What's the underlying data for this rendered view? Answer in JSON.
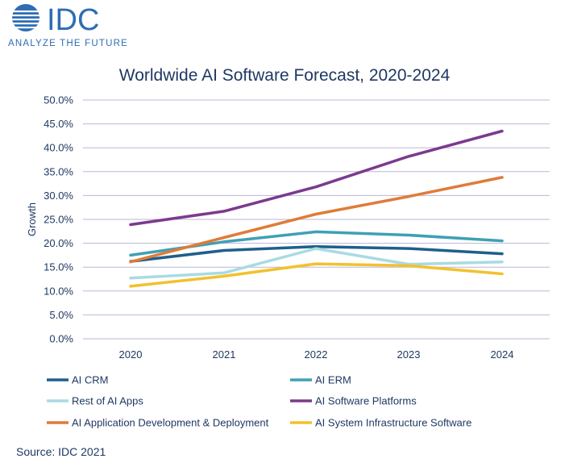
{
  "logo": {
    "brand": "IDC",
    "tagline": "ANALYZE THE FUTURE"
  },
  "source": "Source: IDC 2021",
  "chart_data": {
    "type": "line",
    "title": "Worldwide AI Software Forecast, 2020-2024",
    "xlabel": "",
    "ylabel": "Growth",
    "x": [
      "2020",
      "2021",
      "2022",
      "2023",
      "2024"
    ],
    "ylim": [
      0,
      50
    ],
    "yticks": [
      "0.0%",
      "5.0%",
      "10.0%",
      "15.0%",
      "20.0%",
      "25.0%",
      "30.0%",
      "35.0%",
      "40.0%",
      "45.0%",
      "50.0%"
    ],
    "grid": true,
    "legend_position": "bottom",
    "series": [
      {
        "name": "AI CRM",
        "color": "#1f5f8b",
        "values": [
          16.2,
          18.5,
          19.3,
          18.9,
          17.8
        ]
      },
      {
        "name": "AI ERM",
        "color": "#3fa0b5",
        "values": [
          17.5,
          20.3,
          22.4,
          21.7,
          20.5
        ]
      },
      {
        "name": "Rest of AI Apps",
        "color": "#a8dbe3",
        "values": [
          12.7,
          13.8,
          18.9,
          15.6,
          16.1
        ]
      },
      {
        "name": "AI Software Platforms",
        "color": "#7b3a8e",
        "values": [
          23.9,
          26.7,
          31.8,
          38.2,
          43.5
        ]
      },
      {
        "name": "AI Application Development & Deployment",
        "color": "#e07b39",
        "values": [
          16.1,
          21.2,
          26.1,
          29.8,
          33.8
        ]
      },
      {
        "name": "AI System Infrastructure Software",
        "color": "#f2c12e",
        "values": [
          11.0,
          13.1,
          15.7,
          15.3,
          13.6
        ]
      }
    ]
  }
}
